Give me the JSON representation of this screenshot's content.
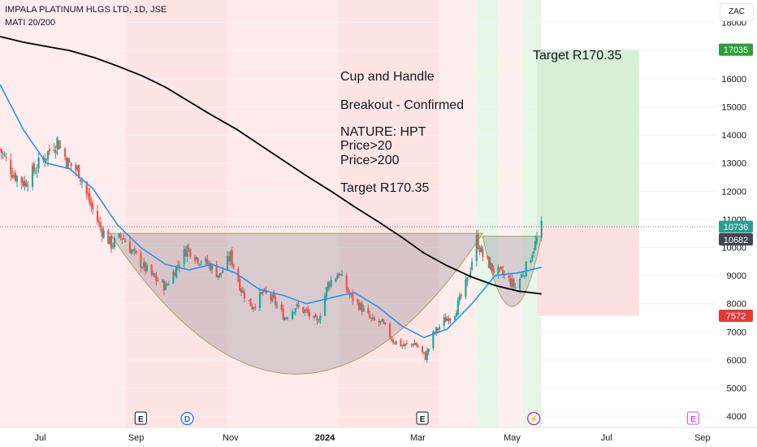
{
  "header": {
    "title": "IMPALA PLATINUM HLGS LTD, 1D, JSE",
    "indicator": "MATI 20/200"
  },
  "currency_button": "ZAC",
  "annotations": {
    "text_lines": [
      "Cup and Handle",
      "Breakout - Confirmed",
      "NATURE: HPT",
      "Price>20",
      "Price>200",
      "Target R170.35"
    ],
    "target_label": "Target R170.35"
  },
  "price_labels": {
    "target": "17035",
    "current": "10736",
    "entry": "10682",
    "stop": "7572"
  },
  "event_markers": [
    {
      "label": "E",
      "date": "2023-09-04",
      "color": "#131722"
    },
    {
      "label": "D",
      "date": "2023-10-04",
      "color": "#2962ff"
    },
    {
      "label": "E",
      "date": "2024-03-04",
      "color": "#131722"
    },
    {
      "label": "⚡",
      "date": "2024-05-15",
      "color": "#9c27b0"
    },
    {
      "label": "E",
      "date": "2024-08-26",
      "color": "#e040fb"
    }
  ],
  "colors": {
    "up": "#26a69a",
    "down": "#ef5350",
    "ma20": "#2196f3",
    "ma200": "#000000",
    "target_zone": "#d6efd6",
    "stop_zone": "#fbe0e0",
    "target_label_bg": "#2e9e3b",
    "stop_label_bg": "#e53935",
    "current_label_bg": "#2a9d8f",
    "entry_label_bg": "#434651"
  },
  "chart_data": {
    "type": "candlestick",
    "ylim": [
      3600,
      18800
    ],
    "yticks": [
      4000,
      5000,
      6000,
      7000,
      8000,
      9000,
      10000,
      11000,
      12000,
      13000,
      14000,
      15000,
      16000,
      17000,
      18000
    ],
    "xticks": [
      {
        "label": "Jul",
        "date": "2023-07-01"
      },
      {
        "label": "Sep",
        "date": "2023-09-01"
      },
      {
        "label": "Nov",
        "date": "2023-11-01"
      },
      {
        "label": "2024",
        "date": "2024-01-01"
      },
      {
        "label": "Mar",
        "date": "2024-03-01"
      },
      {
        "label": "May",
        "date": "2024-05-01"
      },
      {
        "label": "Jul",
        "date": "2024-07-01"
      },
      {
        "label": "Sep",
        "date": "2024-09-01"
      }
    ],
    "x_range": [
      "2023-06-05",
      "2024-09-10"
    ],
    "close_path": [
      [
        "2023-06-05",
        13500
      ],
      [
        "2023-06-14",
        12600
      ],
      [
        "2023-06-21",
        12300
      ],
      [
        "2023-06-28",
        12800
      ],
      [
        "2023-07-05",
        13300
      ],
      [
        "2023-07-12",
        13800
      ],
      [
        "2023-07-19",
        13000
      ],
      [
        "2023-07-26",
        12700
      ],
      [
        "2023-08-02",
        11600
      ],
      [
        "2023-08-09",
        10700
      ],
      [
        "2023-08-16",
        10100
      ],
      [
        "2023-08-23",
        10400
      ],
      [
        "2023-08-30",
        9800
      ],
      [
        "2023-09-06",
        9300
      ],
      [
        "2023-09-13",
        8900
      ],
      [
        "2023-09-20",
        8600
      ],
      [
        "2023-09-27",
        9300
      ],
      [
        "2023-10-04",
        10000
      ],
      [
        "2023-10-11",
        9600
      ],
      [
        "2023-10-18",
        9400
      ],
      [
        "2023-10-25",
        9000
      ],
      [
        "2023-11-01",
        9700
      ],
      [
        "2023-11-08",
        8500
      ],
      [
        "2023-11-15",
        7900
      ],
      [
        "2023-11-22",
        8400
      ],
      [
        "2023-11-29",
        8100
      ],
      [
        "2023-12-06",
        7500
      ],
      [
        "2023-12-13",
        7900
      ],
      [
        "2023-12-20",
        7700
      ],
      [
        "2023-12-27",
        7300
      ],
      [
        "2024-01-03",
        8700
      ],
      [
        "2024-01-10",
        9100
      ],
      [
        "2024-01-17",
        8300
      ],
      [
        "2024-01-24",
        7900
      ],
      [
        "2024-01-31",
        7400
      ],
      [
        "2024-02-07",
        7300
      ],
      [
        "2024-02-14",
        6700
      ],
      [
        "2024-02-21",
        6500
      ],
      [
        "2024-02-28",
        6600
      ],
      [
        "2024-03-06",
        6100
      ],
      [
        "2024-03-11",
        6900
      ],
      [
        "2024-03-18",
        7400
      ],
      [
        "2024-03-25",
        7700
      ],
      [
        "2024-04-02",
        8800
      ],
      [
        "2024-04-08",
        10300
      ],
      [
        "2024-04-12",
        9700
      ],
      [
        "2024-04-19",
        9200
      ],
      [
        "2024-04-26",
        9000
      ],
      [
        "2024-05-03",
        8600
      ],
      [
        "2024-05-10",
        9300
      ],
      [
        "2024-05-15",
        10000
      ],
      [
        "2024-05-20",
        10736
      ]
    ],
    "ma20": [
      [
        "2023-06-05",
        15800
      ],
      [
        "2023-06-20",
        14200
      ],
      [
        "2023-07-05",
        13000
      ],
      [
        "2023-07-20",
        12800
      ],
      [
        "2023-08-04",
        12100
      ],
      [
        "2023-08-20",
        10800
      ],
      [
        "2023-09-04",
        10000
      ],
      [
        "2023-09-20",
        9400
      ],
      [
        "2023-10-05",
        9200
      ],
      [
        "2023-10-20",
        9400
      ],
      [
        "2023-11-04",
        9100
      ],
      [
        "2023-11-20",
        8500
      ],
      [
        "2023-12-05",
        8300
      ],
      [
        "2023-12-20",
        8000
      ],
      [
        "2024-01-04",
        8200
      ],
      [
        "2024-01-20",
        8400
      ],
      [
        "2024-02-04",
        7900
      ],
      [
        "2024-02-20",
        7200
      ],
      [
        "2024-03-05",
        6800
      ],
      [
        "2024-03-20",
        7100
      ],
      [
        "2024-04-05",
        8000
      ],
      [
        "2024-04-20",
        9000
      ],
      [
        "2024-05-05",
        9100
      ],
      [
        "2024-05-20",
        9300
      ]
    ],
    "ma200": [
      [
        "2023-06-05",
        17500
      ],
      [
        "2023-06-20",
        17300
      ],
      [
        "2023-07-05",
        17150
      ],
      [
        "2023-07-20",
        17000
      ],
      [
        "2023-08-05",
        16750
      ],
      [
        "2023-08-20",
        16450
      ],
      [
        "2023-09-05",
        16100
      ],
      [
        "2023-09-20",
        15700
      ],
      [
        "2023-10-05",
        15200
      ],
      [
        "2023-10-20",
        14700
      ],
      [
        "2023-11-05",
        14200
      ],
      [
        "2023-11-20",
        13650
      ],
      [
        "2023-12-05",
        13100
      ],
      [
        "2023-12-20",
        12550
      ],
      [
        "2024-01-05",
        12000
      ],
      [
        "2024-01-20",
        11450
      ],
      [
        "2024-02-05",
        10900
      ],
      [
        "2024-02-20",
        10350
      ],
      [
        "2024-03-05",
        9800
      ],
      [
        "2024-03-20",
        9350
      ],
      [
        "2024-04-05",
        8950
      ],
      [
        "2024-04-20",
        8650
      ],
      [
        "2024-05-05",
        8450
      ],
      [
        "2024-05-20",
        8350
      ]
    ],
    "cup": {
      "start": "2023-08-15",
      "end": "2024-04-12",
      "rim": 10500,
      "bottom": 5500
    },
    "handle": {
      "start": "2024-04-12",
      "end": "2024-05-20",
      "rim": 10400,
      "bottom": 7900
    },
    "target_zone": {
      "start": "2024-05-17",
      "end": "2024-07-22",
      "from": 10736,
      "to": 17035
    },
    "stop_zone": {
      "start": "2024-05-17",
      "end": "2024-07-22",
      "from": 10736,
      "to": 7572
    },
    "current_price": 10736,
    "bg_bands": [
      {
        "start": "2023-06-05",
        "end": "2023-08-25",
        "color": "#ffecec"
      },
      {
        "start": "2023-08-25",
        "end": "2023-10-30",
        "color": "#ffe4e4"
      },
      {
        "start": "2023-10-30",
        "end": "2024-01-10",
        "color": "#ffeaea"
      },
      {
        "start": "2024-01-10",
        "end": "2024-03-15",
        "color": "#ffe4e4"
      },
      {
        "start": "2024-03-15",
        "end": "2024-04-08",
        "color": "#ffecec"
      },
      {
        "start": "2024-04-08",
        "end": "2024-04-22",
        "color": "#e6f7e6"
      },
      {
        "start": "2024-04-22",
        "end": "2024-05-08",
        "color": "#fff0f0"
      },
      {
        "start": "2024-05-08",
        "end": "2024-05-20",
        "color": "#e6f7e6"
      }
    ]
  }
}
